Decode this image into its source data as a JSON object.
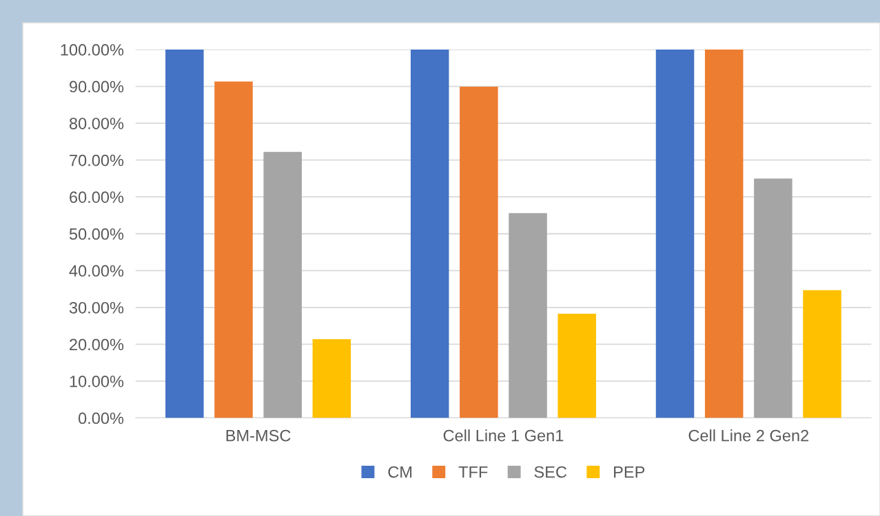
{
  "chart_data": {
    "type": "bar",
    "categories": [
      "BM-MSC",
      "Cell Line 1 Gen1",
      "Cell Line 2 Gen2"
    ],
    "series": [
      {
        "name": "CM",
        "color": "#4472c4",
        "values": [
          100,
          100,
          100
        ]
      },
      {
        "name": "TFF",
        "color": "#ed7d31",
        "values": [
          91.3,
          89.9,
          100
        ]
      },
      {
        "name": "SEC",
        "color": "#a5a5a5",
        "values": [
          72.2,
          55.6,
          65.0
        ]
      },
      {
        "name": "PEP",
        "color": "#ffc000",
        "values": [
          21.4,
          28.3,
          34.7
        ]
      }
    ],
    "ylim": [
      0,
      100
    ],
    "yticks": [
      {
        "value": 0,
        "label": "0.00%"
      },
      {
        "value": 10,
        "label": "10.00%"
      },
      {
        "value": 20,
        "label": "20.00%"
      },
      {
        "value": 30,
        "label": "30.00%"
      },
      {
        "value": 40,
        "label": "40.00%"
      },
      {
        "value": 50,
        "label": "50.00%"
      },
      {
        "value": 60,
        "label": "60.00%"
      },
      {
        "value": 70,
        "label": "70.00%"
      },
      {
        "value": 80,
        "label": "80.00%"
      },
      {
        "value": 90,
        "label": "90.00%"
      },
      {
        "value": 100,
        "label": "100.00%"
      }
    ],
    "grid": "y",
    "legend": "bottom"
  }
}
